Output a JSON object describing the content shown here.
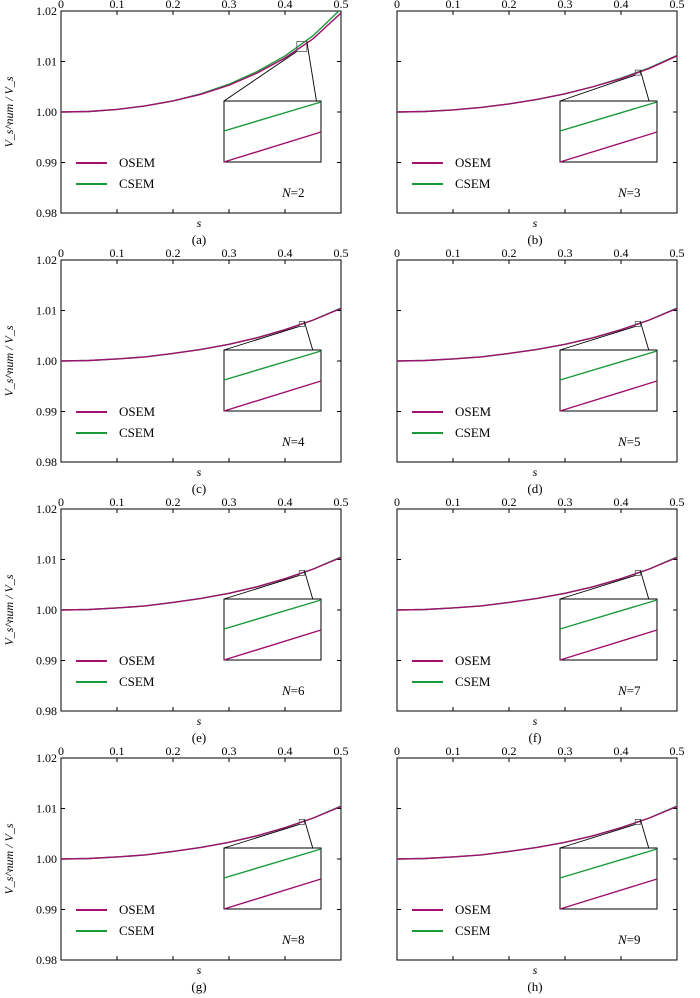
{
  "chart_data": [
    {
      "type": "line",
      "panel": "(a)",
      "title": "",
      "xlabel": "s",
      "ylabel": "V_s^num / V_s",
      "xlim": [
        0,
        0.5
      ],
      "ylim": [
        0.98,
        1.02
      ],
      "x_ticks": [
        "0",
        "0.1",
        "0.2",
        "0.3",
        "0.4",
        "0.5"
      ],
      "y_ticks": [
        "0.98",
        "0.99",
        "1.00",
        "1.01",
        "1.02"
      ],
      "annotation": "N=2",
      "N": "2",
      "legend": "bottom-left",
      "series": [
        {
          "name": "OSEM",
          "color": "#a0106e",
          "x": [
            0,
            0.05,
            0.1,
            0.15,
            0.2,
            0.25,
            0.3,
            0.35,
            0.4,
            0.45,
            0.5
          ],
          "y": [
            1.0,
            1.0001,
            1.0005,
            1.0012,
            1.0022,
            1.0035,
            1.0053,
            1.0077,
            1.0107,
            1.0145,
            1.0196
          ]
        },
        {
          "name": "CSEM",
          "color": "#1a9a3a",
          "x": [
            0,
            0.05,
            0.1,
            0.15,
            0.2,
            0.25,
            0.3,
            0.35,
            0.4,
            0.45,
            0.5
          ],
          "y": [
            1.0,
            1.0001,
            1.0005,
            1.0012,
            1.0022,
            1.0036,
            1.0055,
            1.008,
            1.0111,
            1.0151,
            1.0204
          ]
        }
      ]
    },
    {
      "type": "line",
      "panel": "(b)",
      "title": "",
      "xlabel": "s",
      "ylabel": "",
      "xlim": [
        0,
        0.5
      ],
      "ylim": [
        0.98,
        1.02
      ],
      "x_ticks": [
        "0",
        "0.1",
        "0.2",
        "0.3",
        "0.4",
        "0.5"
      ],
      "y_ticks": [],
      "annotation": "N=3",
      "N": "3",
      "legend": "bottom-left",
      "series": [
        {
          "name": "OSEM",
          "color": "#a0106e",
          "x": [
            0,
            0.05,
            0.1,
            0.15,
            0.2,
            0.25,
            0.3,
            0.35,
            0.4,
            0.45,
            0.5
          ],
          "y": [
            1.0,
            1.0001,
            1.0004,
            1.0009,
            1.0016,
            1.0025,
            1.0036,
            1.005,
            1.0066,
            1.0086,
            1.0111
          ]
        },
        {
          "name": "CSEM",
          "color": "#1a9a3a",
          "x": [
            0,
            0.05,
            0.1,
            0.15,
            0.2,
            0.25,
            0.3,
            0.35,
            0.4,
            0.45,
            0.5
          ],
          "y": [
            1.0,
            1.0001,
            1.0004,
            1.0009,
            1.0016,
            1.0025,
            1.0036,
            1.005,
            1.0067,
            1.0087,
            1.0112
          ]
        }
      ]
    },
    {
      "type": "line",
      "panel": "(c)",
      "title": "",
      "xlabel": "s",
      "ylabel": "V_s^num / V_s",
      "xlim": [
        0,
        0.5
      ],
      "ylim": [
        0.98,
        1.02
      ],
      "x_ticks": [
        "0",
        "0.1",
        "0.2",
        "0.3",
        "0.4",
        "0.5"
      ],
      "y_ticks": [
        "0.98",
        "0.99",
        "1.00",
        "1.01",
        "1.02"
      ],
      "annotation": "N=4",
      "N": "4",
      "legend": "bottom-left",
      "series": [
        {
          "name": "OSEM",
          "color": "#a0106e",
          "x": [
            0,
            0.05,
            0.1,
            0.15,
            0.2,
            0.25,
            0.3,
            0.35,
            0.4,
            0.45,
            0.5
          ],
          "y": [
            1.0,
            1.0001,
            1.0004,
            1.0008,
            1.0015,
            1.0023,
            1.0033,
            1.0046,
            1.0062,
            1.0081,
            1.0104
          ]
        },
        {
          "name": "CSEM",
          "color": "#1a9a3a",
          "x": [
            0,
            0.05,
            0.1,
            0.15,
            0.2,
            0.25,
            0.3,
            0.35,
            0.4,
            0.45,
            0.5
          ],
          "y": [
            1.0,
            1.0001,
            1.0004,
            1.0008,
            1.0015,
            1.0023,
            1.0033,
            1.0046,
            1.0062,
            1.0081,
            1.0105
          ]
        }
      ]
    },
    {
      "type": "line",
      "panel": "(d)",
      "title": "",
      "xlabel": "s",
      "ylabel": "",
      "xlim": [
        0,
        0.5
      ],
      "ylim": [
        0.98,
        1.02
      ],
      "x_ticks": [
        "0",
        "0.1",
        "0.2",
        "0.3",
        "0.4",
        "0.5"
      ],
      "y_ticks": [],
      "annotation": "N=5",
      "N": "5",
      "legend": "bottom-left",
      "series": [
        {
          "name": "OSEM",
          "color": "#a0106e",
          "x": [
            0,
            0.05,
            0.1,
            0.15,
            0.2,
            0.25,
            0.3,
            0.35,
            0.4,
            0.45,
            0.5
          ],
          "y": [
            1.0,
            1.0001,
            1.0004,
            1.0008,
            1.0015,
            1.0023,
            1.0033,
            1.0046,
            1.0062,
            1.0081,
            1.0104
          ]
        },
        {
          "name": "CSEM",
          "color": "#1a9a3a",
          "x": [
            0,
            0.05,
            0.1,
            0.15,
            0.2,
            0.25,
            0.3,
            0.35,
            0.4,
            0.45,
            0.5
          ],
          "y": [
            1.0,
            1.0001,
            1.0004,
            1.0008,
            1.0015,
            1.0023,
            1.0033,
            1.0046,
            1.0062,
            1.0081,
            1.0105
          ]
        }
      ]
    },
    {
      "type": "line",
      "panel": "(e)",
      "title": "",
      "xlabel": "s",
      "ylabel": "V_s^num / V_s",
      "xlim": [
        0,
        0.5
      ],
      "ylim": [
        0.98,
        1.02
      ],
      "x_ticks": [
        "0",
        "0.1",
        "0.2",
        "0.3",
        "0.4",
        "0.5"
      ],
      "y_ticks": [
        "0.98",
        "0.99",
        "1.00",
        "1.01",
        "1.02"
      ],
      "annotation": "N=6",
      "N": "6",
      "legend": "bottom-left",
      "series": [
        {
          "name": "OSEM",
          "color": "#a0106e",
          "x": [
            0,
            0.05,
            0.1,
            0.15,
            0.2,
            0.25,
            0.3,
            0.35,
            0.4,
            0.45,
            0.5
          ],
          "y": [
            1.0,
            1.0001,
            1.0004,
            1.0008,
            1.0015,
            1.0023,
            1.0033,
            1.0046,
            1.0062,
            1.0081,
            1.0104
          ]
        },
        {
          "name": "CSEM",
          "color": "#1a9a3a",
          "x": [
            0,
            0.05,
            0.1,
            0.15,
            0.2,
            0.25,
            0.3,
            0.35,
            0.4,
            0.45,
            0.5
          ],
          "y": [
            1.0,
            1.0001,
            1.0004,
            1.0008,
            1.0015,
            1.0023,
            1.0033,
            1.0046,
            1.0062,
            1.0081,
            1.0105
          ]
        }
      ]
    },
    {
      "type": "line",
      "panel": "(f)",
      "title": "",
      "xlabel": "s",
      "ylabel": "",
      "xlim": [
        0,
        0.5
      ],
      "ylim": [
        0.98,
        1.02
      ],
      "x_ticks": [
        "0",
        "0.1",
        "0.2",
        "0.3",
        "0.4",
        "0.5"
      ],
      "y_ticks": [],
      "annotation": "N=7",
      "N": "7",
      "legend": "bottom-left",
      "series": [
        {
          "name": "OSEM",
          "color": "#a0106e",
          "x": [
            0,
            0.05,
            0.1,
            0.15,
            0.2,
            0.25,
            0.3,
            0.35,
            0.4,
            0.45,
            0.5
          ],
          "y": [
            1.0,
            1.0001,
            1.0004,
            1.0008,
            1.0015,
            1.0023,
            1.0033,
            1.0046,
            1.0062,
            1.0081,
            1.0104
          ]
        },
        {
          "name": "CSEM",
          "color": "#1a9a3a",
          "x": [
            0,
            0.05,
            0.1,
            0.15,
            0.2,
            0.25,
            0.3,
            0.35,
            0.4,
            0.45,
            0.5
          ],
          "y": [
            1.0,
            1.0001,
            1.0004,
            1.0008,
            1.0015,
            1.0023,
            1.0033,
            1.0046,
            1.0062,
            1.0081,
            1.0105
          ]
        }
      ]
    },
    {
      "type": "line",
      "panel": "(g)",
      "title": "",
      "xlabel": "s",
      "ylabel": "V_s^num / V_s",
      "xlim": [
        0,
        0.5
      ],
      "ylim": [
        0.98,
        1.02
      ],
      "x_ticks": [
        "0",
        "0.1",
        "0.2",
        "0.3",
        "0.4",
        "0.5"
      ],
      "y_ticks": [
        "0.98",
        "0.99",
        "1.00",
        "1.01",
        "1.02"
      ],
      "annotation": "N=8",
      "N": "8",
      "legend": "bottom-left",
      "series": [
        {
          "name": "OSEM",
          "color": "#a0106e",
          "x": [
            0,
            0.05,
            0.1,
            0.15,
            0.2,
            0.25,
            0.3,
            0.35,
            0.4,
            0.45,
            0.5
          ],
          "y": [
            1.0,
            1.0001,
            1.0004,
            1.0008,
            1.0015,
            1.0023,
            1.0033,
            1.0046,
            1.0062,
            1.0081,
            1.0104
          ]
        },
        {
          "name": "CSEM",
          "color": "#1a9a3a",
          "x": [
            0,
            0.05,
            0.1,
            0.15,
            0.2,
            0.25,
            0.3,
            0.35,
            0.4,
            0.45,
            0.5
          ],
          "y": [
            1.0,
            1.0001,
            1.0004,
            1.0008,
            1.0015,
            1.0023,
            1.0033,
            1.0046,
            1.0062,
            1.0081,
            1.0105
          ]
        }
      ]
    },
    {
      "type": "line",
      "panel": "(h)",
      "title": "",
      "xlabel": "s",
      "ylabel": "",
      "xlim": [
        0,
        0.5
      ],
      "ylim": [
        0.98,
        1.02
      ],
      "x_ticks": [
        "0",
        "0.1",
        "0.2",
        "0.3",
        "0.4",
        "0.5"
      ],
      "y_ticks": [],
      "annotation": "N=9",
      "N": "9",
      "legend": "bottom-left",
      "series": [
        {
          "name": "OSEM",
          "color": "#a0106e",
          "x": [
            0,
            0.05,
            0.1,
            0.15,
            0.2,
            0.25,
            0.3,
            0.35,
            0.4,
            0.45,
            0.5
          ],
          "y": [
            1.0,
            1.0001,
            1.0004,
            1.0008,
            1.0015,
            1.0023,
            1.0033,
            1.0046,
            1.0062,
            1.0081,
            1.0104
          ]
        },
        {
          "name": "CSEM",
          "color": "#1a9a3a",
          "x": [
            0,
            0.05,
            0.1,
            0.15,
            0.2,
            0.25,
            0.3,
            0.35,
            0.4,
            0.45,
            0.5
          ],
          "y": [
            1.0,
            1.0001,
            1.0004,
            1.0008,
            1.0015,
            1.0023,
            1.0033,
            1.0046,
            1.0062,
            1.0081,
            1.0105
          ]
        }
      ]
    }
  ]
}
